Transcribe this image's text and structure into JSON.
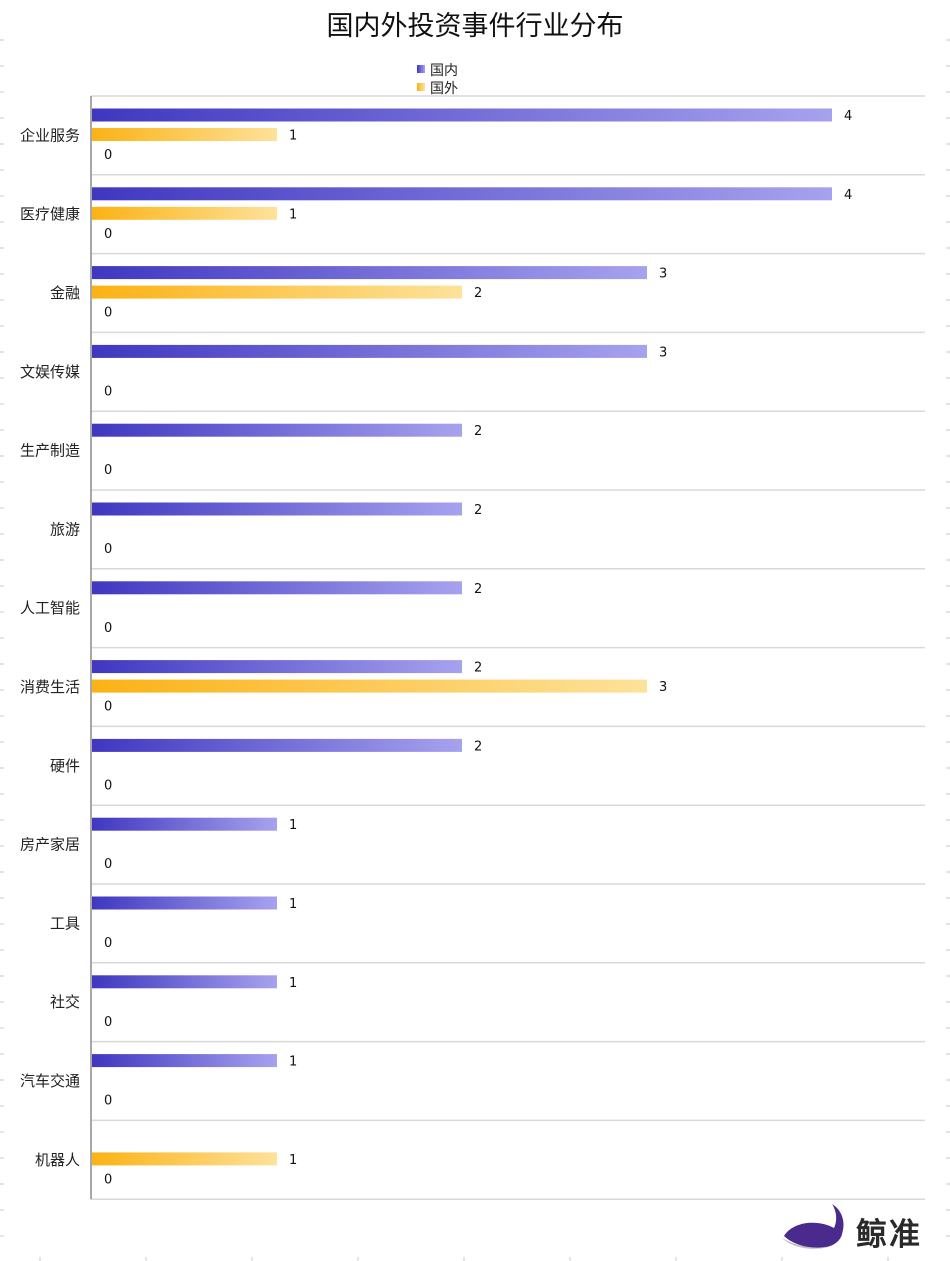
{
  "chart_data": {
    "type": "bar",
    "orientation": "horizontal",
    "title": "国内外投资事件行业分布",
    "categories": [
      "企业服务",
      "医疗健康",
      "金融",
      "文娱传媒",
      "生产制造",
      "旅游",
      "人工智能",
      "消费生活",
      "硬件",
      "房产家居",
      "工具",
      "社交",
      "汽车交通",
      "机器人"
    ],
    "series": [
      {
        "name": "国内",
        "values": [
          4,
          4,
          3,
          3,
          2,
          2,
          2,
          2,
          2,
          1,
          1,
          1,
          1,
          0
        ],
        "color_start": "#3f37c0",
        "color_end": "#a7a2ee"
      },
      {
        "name": "国外",
        "values": [
          1,
          1,
          2,
          0,
          0,
          0,
          0,
          3,
          0,
          0,
          0,
          0,
          0,
          1
        ],
        "color_start": "#fbb215",
        "color_end": "#fde29a"
      },
      {
        "name": "",
        "values": [
          0,
          0,
          0,
          0,
          0,
          0,
          0,
          0,
          0,
          0,
          0,
          0,
          0,
          0
        ]
      }
    ],
    "xlim": [
      0,
      4
    ],
    "grid": true,
    "legend_position": "top-center",
    "data_labels": true
  },
  "brand": {
    "name": "鲸准",
    "logo_icon": "whale-icon",
    "accent_color": "#4a2a8c"
  }
}
